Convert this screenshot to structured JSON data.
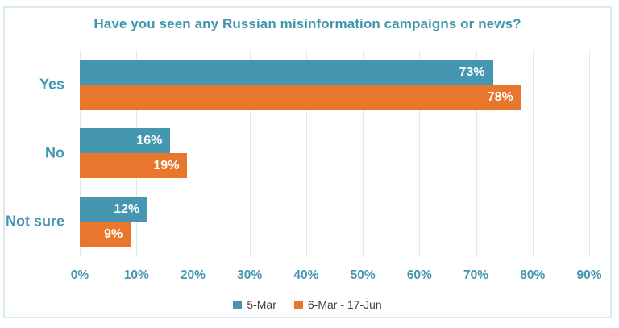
{
  "chart_data": {
    "type": "bar",
    "orientation": "horizontal",
    "title": "Have you seen any Russian misinformation campaigns or news?",
    "categories": [
      "Yes",
      "No",
      "Not sure"
    ],
    "series": [
      {
        "name": "5-Mar",
        "color": "#4596b1",
        "values": [
          73,
          16,
          12
        ],
        "labels": [
          "73%",
          "16%",
          "12%"
        ]
      },
      {
        "name": "6-Mar - 17-Jun",
        "color": "#e8762d",
        "values": [
          78,
          19,
          9
        ],
        "labels": [
          "78%",
          "19%",
          "9%"
        ]
      }
    ],
    "x_axis": {
      "min": 0,
      "max": 90,
      "tick_step": 10,
      "tick_labels": [
        "0%",
        "10%",
        "20%",
        "30%",
        "40%",
        "50%",
        "60%",
        "70%",
        "80%",
        "90%"
      ]
    },
    "legend_position": "bottom",
    "grid": "vertical-only"
  },
  "colors": {
    "title_text": "#3e95ae",
    "category_text": "#4396b3",
    "tick_text": "#4396b3",
    "legend_text": "#404040",
    "gridline": "#e2e9ed",
    "frame_border": "#d9eaf0",
    "background": "#ffffff",
    "bar_label_text": "#ffffff"
  }
}
